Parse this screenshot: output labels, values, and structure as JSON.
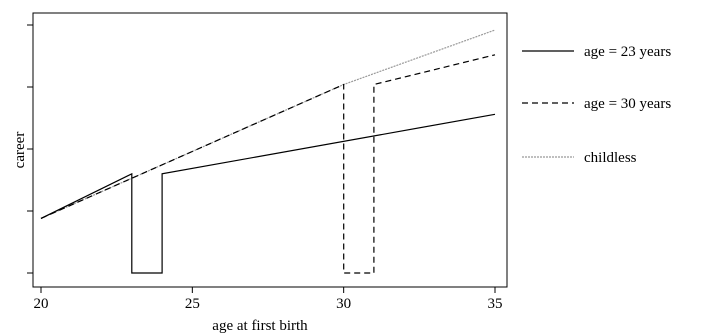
{
  "chart_data": {
    "type": "line",
    "title": "",
    "xlabel": "age at first birth",
    "ylabel": "career",
    "xlim": [
      20,
      35
    ],
    "ylim": [
      0,
      100
    ],
    "x_ticks": [
      20,
      25,
      30,
      35
    ],
    "y_ticks_labeled": false,
    "grid": false,
    "legend_position": "right",
    "series": [
      {
        "name": "age = 23 years",
        "style": "solid",
        "color": "#000000",
        "points": [
          [
            20,
            22
          ],
          [
            23,
            40
          ],
          [
            23,
            0
          ],
          [
            24,
            0
          ],
          [
            24,
            40
          ],
          [
            35,
            64
          ]
        ]
      },
      {
        "name": "age = 30 years",
        "style": "dashed",
        "color": "#000000",
        "points": [
          [
            20,
            22
          ],
          [
            30,
            76
          ],
          [
            30,
            0
          ],
          [
            31,
            0
          ],
          [
            31,
            76
          ],
          [
            35,
            88
          ]
        ]
      },
      {
        "name": "childless",
        "style": "dotted",
        "color": "#999999",
        "points": [
          [
            20,
            22
          ],
          [
            30,
            76
          ],
          [
            35,
            98
          ]
        ]
      }
    ]
  }
}
